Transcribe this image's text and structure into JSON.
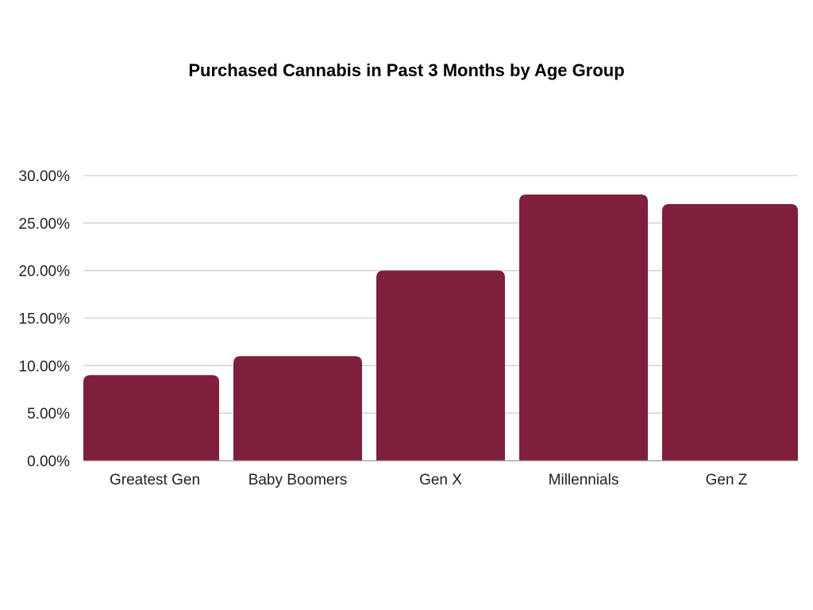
{
  "chart_data": {
    "type": "bar",
    "title": "Purchased Cannabis in Past 3 Months by Age Group",
    "categories": [
      "Greatest Gen",
      "Baby Boomers",
      "Gen X",
      "Millennials",
      "Gen Z"
    ],
    "values": [
      9,
      11,
      20,
      28,
      27
    ],
    "value_unit": "%",
    "xlabel": "",
    "ylabel": "",
    "ylim": [
      0,
      30
    ],
    "yticks": [
      0,
      5,
      10,
      15,
      20,
      25,
      30
    ],
    "ytick_labels": [
      "0.00%",
      "5.00%",
      "10.00%",
      "15.00%",
      "20.00%",
      "25.00%",
      "30.00%"
    ],
    "grid": true,
    "legend": "none",
    "bar_color": "#7f1f3b",
    "grid_color": "#d0d0d0"
  }
}
